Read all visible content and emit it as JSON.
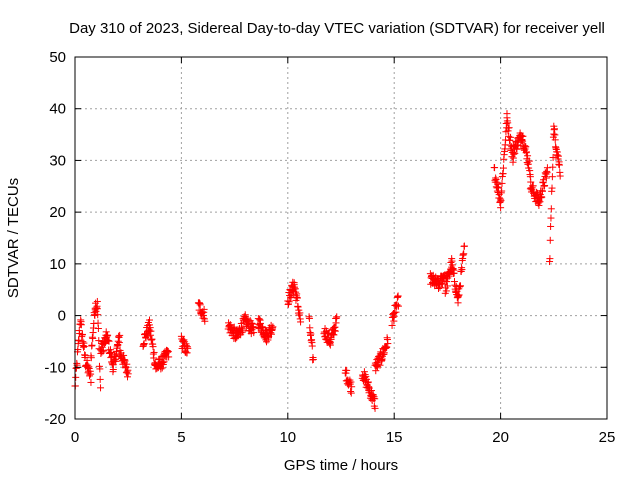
{
  "chart_data": {
    "type": "scatter",
    "title": "Day 310 of 2023, Sidereal Day-to-day VTEC variation (SDTVAR) for receiver yell",
    "xlabel": "GPS time / hours",
    "ylabel": "SDTVAR / TECUs",
    "xlim": [
      0,
      25
    ],
    "ylim": [
      -20,
      50
    ],
    "xticks": [
      0,
      5,
      10,
      15,
      20,
      25
    ],
    "yticks": [
      -20,
      -10,
      0,
      10,
      20,
      30,
      40,
      50
    ],
    "grid": true,
    "marker": "+",
    "colors": {
      "series": "#ff0000",
      "grid": "#a0a0a0",
      "axis": "#000000"
    },
    "series": [
      {
        "name": "SDTVAR",
        "segments": [
          {
            "x": [
              0.0,
              0.25,
              0.5
            ],
            "y": [
              -14,
              -1,
              -9
            ]
          },
          {
            "x": [
              0.5,
              0.75
            ],
            "y": [
              -9,
              -12
            ]
          },
          {
            "x": [
              0.75,
              0.95,
              1.05,
              1.2
            ],
            "y": [
              -8,
              2,
              2,
              -14
            ]
          },
          {
            "x": [
              1.2,
              1.5,
              1.8,
              2.1
            ],
            "y": [
              -7,
              -4,
              -10,
              -4
            ]
          },
          {
            "x": [
              2.1,
              2.5
            ],
            "y": [
              -7,
              -11
            ]
          },
          {
            "x": [
              3.2,
              3.5,
              3.8,
              4.1,
              4.4
            ],
            "y": [
              -5,
              -2,
              -10,
              -9,
              -7
            ]
          },
          {
            "x": [
              5.0,
              5.3
            ],
            "y": [
              -5,
              -7
            ]
          },
          {
            "x": [
              5.8,
              6.1
            ],
            "y": [
              2,
              0
            ]
          },
          {
            "x": [
              7.2,
              7.6,
              8.0,
              8.4
            ],
            "y": [
              -2,
              -4,
              -1,
              -3
            ]
          },
          {
            "x": [
              8.6,
              9.0,
              9.3
            ],
            "y": [
              -1,
              -4,
              -2
            ]
          },
          {
            "x": [
              10.0,
              10.3,
              10.6
            ],
            "y": [
              3,
              6,
              -1
            ]
          },
          {
            "x": [
              11.0,
              11.2
            ],
            "y": [
              -1,
              -9
            ]
          },
          {
            "x": [
              11.7,
              12.0,
              12.3
            ],
            "y": [
              -3,
              -5,
              -1
            ]
          },
          {
            "x": [
              12.7,
              13.0
            ],
            "y": [
              -11,
              -14
            ]
          },
          {
            "x": [
              13.5,
              13.8,
              14.1
            ],
            "y": [
              -11,
              -14,
              -17
            ]
          },
          {
            "x": [
              14.1,
              14.4,
              14.7
            ],
            "y": [
              -10,
              -8,
              -5
            ]
          },
          {
            "x": [
              14.9,
              15.2
            ],
            "y": [
              -1,
              3
            ]
          },
          {
            "x": [
              16.7,
              17.1,
              17.4
            ],
            "y": [
              7,
              6,
              8
            ]
          },
          {
            "x": [
              17.4,
              17.7,
              18.0,
              18.3
            ],
            "y": [
              5,
              10,
              3,
              13
            ]
          },
          {
            "x": [
              19.7,
              20.0,
              20.3,
              20.6
            ],
            "y": [
              28,
              22,
              38,
              30
            ]
          },
          {
            "x": [
              20.6,
              21.0,
              21.4
            ],
            "y": [
              32,
              35,
              28
            ]
          },
          {
            "x": [
              21.4,
              21.8,
              22.2
            ],
            "y": [
              25,
              22,
              28
            ]
          },
          {
            "x": [
              22.3,
              22.5,
              22.8
            ],
            "y": [
              10,
              36,
              28
            ]
          }
        ]
      }
    ]
  }
}
